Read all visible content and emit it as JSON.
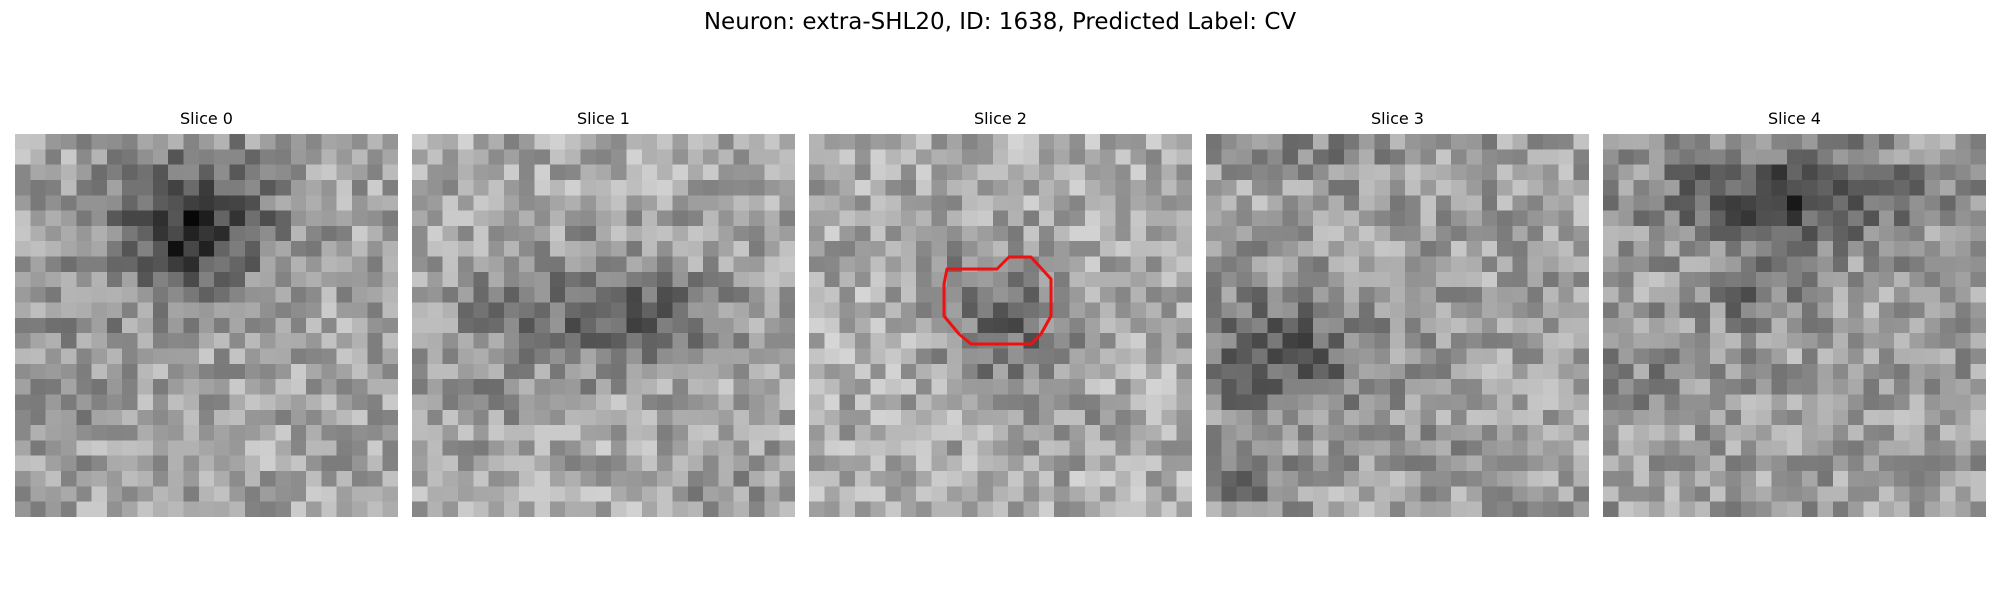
{
  "figure": {
    "title": "Neuron: extra-SHL20, ID: 1638, Predicted Label: CV"
  },
  "slices": [
    {
      "title": "Slice 0"
    },
    {
      "title": "Slice 1"
    },
    {
      "title": "Slice 2",
      "has_roi_outline": true
    },
    {
      "title": "Slice 3"
    },
    {
      "title": "Slice 4"
    }
  ],
  "colors": {
    "roi_outline": "#ee1111",
    "background": "#ffffff",
    "colormap": "grayscale"
  }
}
